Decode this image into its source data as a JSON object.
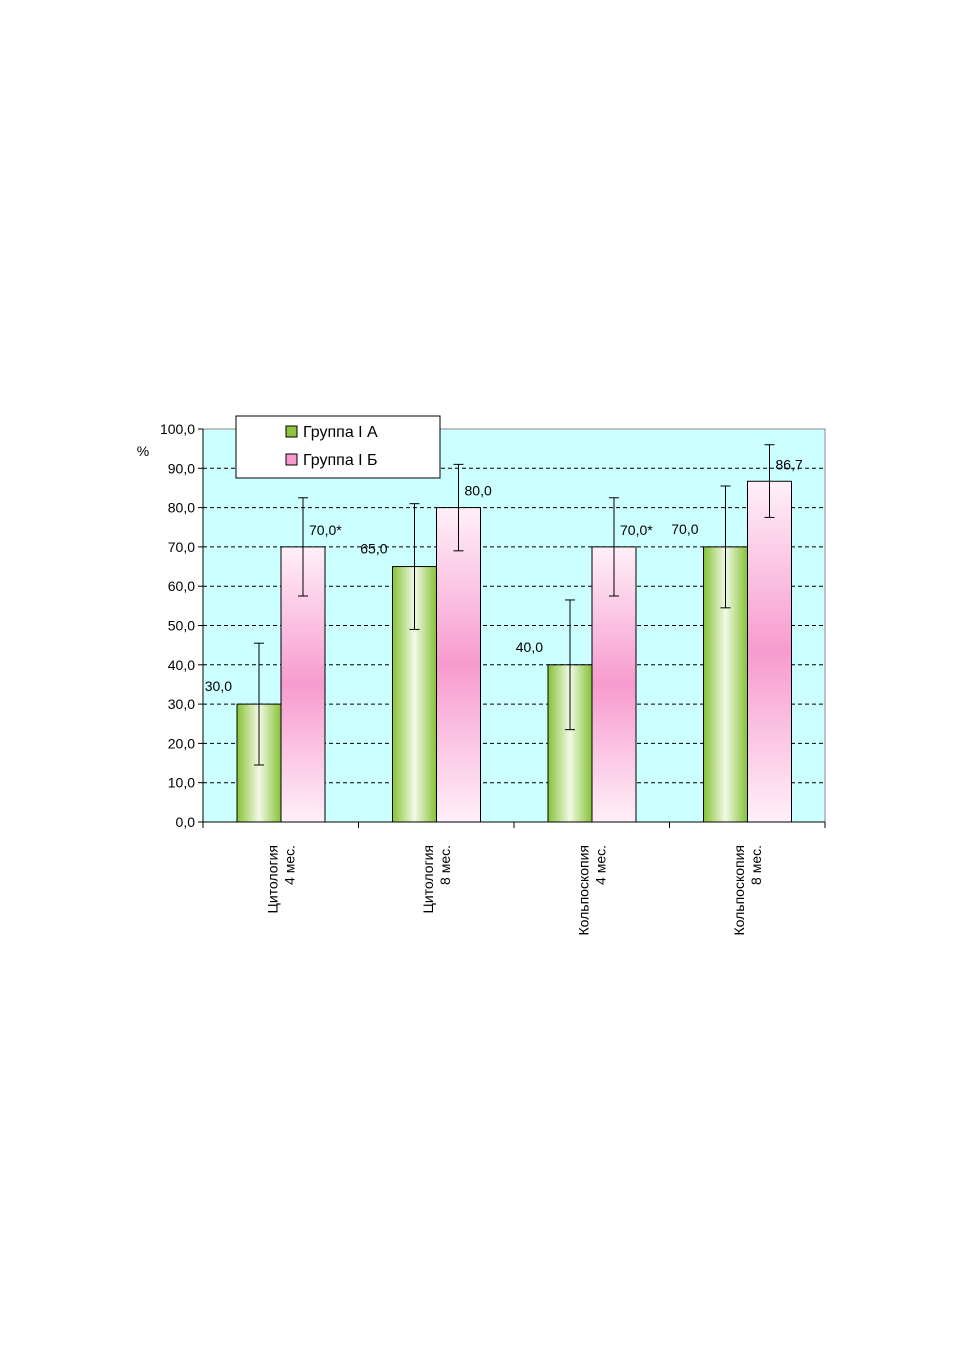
{
  "chart_data": {
    "type": "bar",
    "ylabel": "%",
    "ylim": [
      0,
      100
    ],
    "ytick_step": 10,
    "y_ticks": [
      "0,0",
      "10,0",
      "20,0",
      "30,0",
      "40,0",
      "50,0",
      "60,0",
      "70,0",
      "80,0",
      "90,0",
      "100,0"
    ],
    "grid": true,
    "legend_position": "top-left",
    "categories": [
      [
        "Цитология",
        "4 мес."
      ],
      [
        "Цитология",
        "8 мес."
      ],
      [
        "Кольпоскопия",
        "4 мес."
      ],
      [
        "Кольпоскопия",
        "8 мес."
      ]
    ],
    "series": [
      {
        "name": "Группа I А",
        "values": [
          30.0,
          65.0,
          40.0,
          70.0
        ],
        "labels": [
          "30,0",
          "65,0",
          "40,0",
          "70,0"
        ],
        "errors": [
          [
            14.5,
            45.5
          ],
          [
            49.0,
            81.0
          ],
          [
            23.5,
            56.5
          ],
          [
            54.5,
            85.5
          ]
        ],
        "color": "#8cc43c"
      },
      {
        "name": "Группа I Б",
        "values": [
          70.0,
          80.0,
          70.0,
          86.7
        ],
        "labels": [
          "70,0*",
          "80,0",
          "70,0*",
          "86,7"
        ],
        "errors": [
          [
            57.5,
            82.5
          ],
          [
            69.0,
            91.0
          ],
          [
            57.5,
            82.5
          ],
          [
            77.5,
            96.0
          ]
        ],
        "color": "#f79bcf"
      }
    ],
    "plot_background": "#ccffff"
  }
}
